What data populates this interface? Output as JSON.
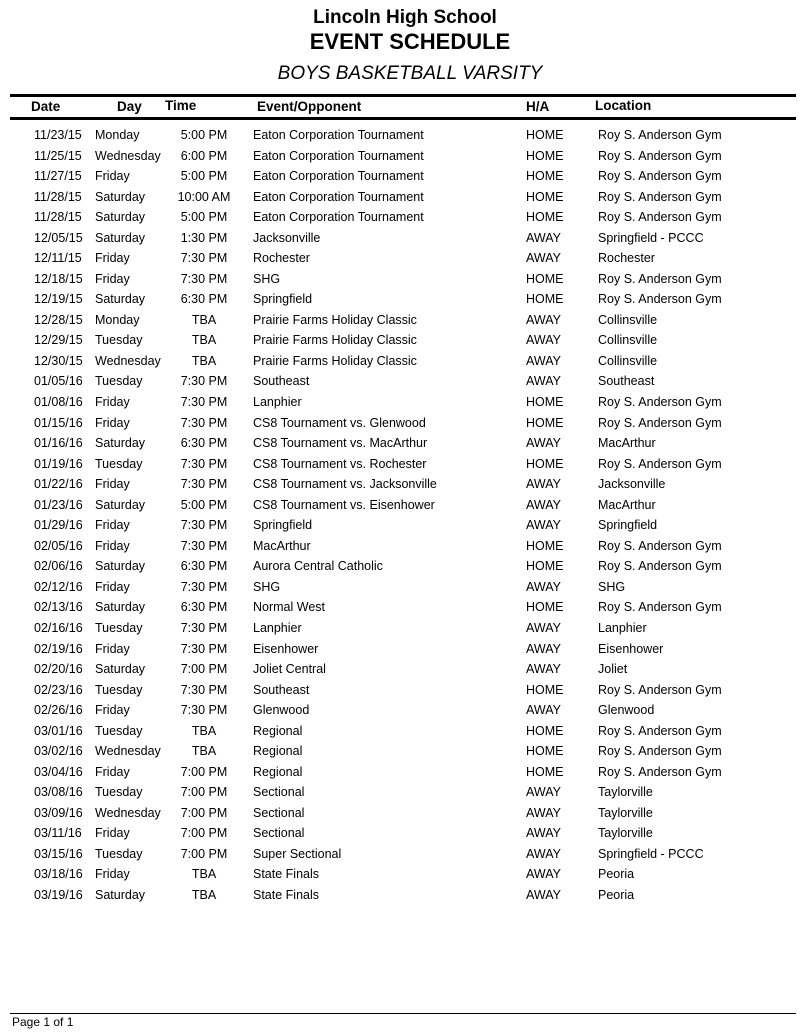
{
  "header": {
    "school": "Lincoln High School",
    "title": "EVENT SCHEDULE",
    "subtitle": "BOYS BASKETBALL VARSITY"
  },
  "columns": {
    "date": "Date",
    "day": "Day",
    "time": "Time",
    "event": "Event/Opponent",
    "ha": "H/A",
    "location": "Location"
  },
  "rows": [
    [
      "11/23/15",
      "Monday",
      "5:00 PM",
      "Eaton Corporation Tournament",
      "HOME",
      "Roy S. Anderson Gym"
    ],
    [
      "11/25/15",
      "Wednesday",
      "6:00 PM",
      "Eaton Corporation Tournament",
      "HOME",
      "Roy S. Anderson Gym"
    ],
    [
      "11/27/15",
      "Friday",
      "5:00 PM",
      "Eaton Corporation Tournament",
      "HOME",
      "Roy S. Anderson Gym"
    ],
    [
      "11/28/15",
      "Saturday",
      "10:00 AM",
      "Eaton Corporation Tournament",
      "HOME",
      "Roy S. Anderson Gym"
    ],
    [
      "11/28/15",
      "Saturday",
      "5:00 PM",
      "Eaton Corporation Tournament",
      "HOME",
      "Roy S. Anderson Gym"
    ],
    [
      "12/05/15",
      "Saturday",
      "1:30 PM",
      "Jacksonville",
      "AWAY",
      "Springfield - PCCC"
    ],
    [
      "12/11/15",
      "Friday",
      "7:30 PM",
      "Rochester",
      "AWAY",
      "Rochester"
    ],
    [
      "12/18/15",
      "Friday",
      "7:30 PM",
      "SHG",
      "HOME",
      "Roy S. Anderson Gym"
    ],
    [
      "12/19/15",
      "Saturday",
      "6:30 PM",
      "Springfield",
      "HOME",
      "Roy S. Anderson Gym"
    ],
    [
      "12/28/15",
      "Monday",
      "TBA",
      "Prairie Farms Holiday Classic",
      "AWAY",
      "Collinsville"
    ],
    [
      "12/29/15",
      "Tuesday",
      "TBA",
      "Prairie Farms Holiday Classic",
      "AWAY",
      "Collinsville"
    ],
    [
      "12/30/15",
      "Wednesday",
      "TBA",
      "Prairie Farms Holiday Classic",
      "AWAY",
      "Collinsville"
    ],
    [
      "01/05/16",
      "Tuesday",
      "7:30 PM",
      "Southeast",
      "AWAY",
      "Southeast"
    ],
    [
      "01/08/16",
      "Friday",
      "7:30 PM",
      "Lanphier",
      "HOME",
      "Roy S. Anderson Gym"
    ],
    [
      "01/15/16",
      "Friday",
      "7:30 PM",
      "CS8 Tournament vs. Glenwood",
      "HOME",
      "Roy S. Anderson Gym"
    ],
    [
      "01/16/16",
      "Saturday",
      "6:30 PM",
      "CS8 Tournament vs. MacArthur",
      "AWAY",
      "MacArthur"
    ],
    [
      "01/19/16",
      "Tuesday",
      "7:30 PM",
      "CS8 Tournament vs. Rochester",
      "HOME",
      "Roy S. Anderson Gym"
    ],
    [
      "01/22/16",
      "Friday",
      "7:30 PM",
      "CS8 Tournament vs. Jacksonville",
      "AWAY",
      "Jacksonville"
    ],
    [
      "01/23/16",
      "Saturday",
      "5:00 PM",
      "CS8 Tournament vs. Eisenhower",
      "AWAY",
      "MacArthur"
    ],
    [
      "01/29/16",
      "Friday",
      "7:30 PM",
      "Springfield",
      "AWAY",
      "Springfield"
    ],
    [
      "02/05/16",
      "Friday",
      "7:30 PM",
      "MacArthur",
      "HOME",
      "Roy S. Anderson Gym"
    ],
    [
      "02/06/16",
      "Saturday",
      "6:30 PM",
      "Aurora Central Catholic",
      "HOME",
      "Roy S. Anderson Gym"
    ],
    [
      "02/12/16",
      "Friday",
      "7:30 PM",
      "SHG",
      "AWAY",
      "SHG"
    ],
    [
      "02/13/16",
      "Saturday",
      "6:30 PM",
      "Normal West",
      "HOME",
      "Roy S. Anderson Gym"
    ],
    [
      "02/16/16",
      "Tuesday",
      "7:30 PM",
      "Lanphier",
      "AWAY",
      "Lanphier"
    ],
    [
      "02/19/16",
      "Friday",
      "7:30 PM",
      "Eisenhower",
      "AWAY",
      "Eisenhower"
    ],
    [
      "02/20/16",
      "Saturday",
      "7:00 PM",
      "Joliet Central",
      "AWAY",
      "Joliet"
    ],
    [
      "02/23/16",
      "Tuesday",
      "7:30 PM",
      "Southeast",
      "HOME",
      "Roy S. Anderson Gym"
    ],
    [
      "02/26/16",
      "Friday",
      "7:30 PM",
      "Glenwood",
      "AWAY",
      "Glenwood"
    ],
    [
      "03/01/16",
      "Tuesday",
      "TBA",
      "Regional",
      "HOME",
      "Roy S. Anderson Gym"
    ],
    [
      "03/02/16",
      "Wednesday",
      "TBA",
      "Regional",
      "HOME",
      "Roy S. Anderson Gym"
    ],
    [
      "03/04/16",
      "Friday",
      "7:00 PM",
      "Regional",
      "HOME",
      "Roy S. Anderson Gym"
    ],
    [
      "03/08/16",
      "Tuesday",
      "7:00 PM",
      "Sectional",
      "AWAY",
      "Taylorville"
    ],
    [
      "03/09/16",
      "Wednesday",
      "7:00 PM",
      "Sectional",
      "AWAY",
      "Taylorville"
    ],
    [
      "03/11/16",
      "Friday",
      "7:00 PM",
      "Sectional",
      "AWAY",
      "Taylorville"
    ],
    [
      "03/15/16",
      "Tuesday",
      "7:00 PM",
      "Super Sectional",
      "AWAY",
      "Springfield - PCCC"
    ],
    [
      "03/18/16",
      "Friday",
      "TBA",
      "State Finals",
      "AWAY",
      "Peoria"
    ],
    [
      "03/19/16",
      "Saturday",
      "TBA",
      "State Finals",
      "AWAY",
      "Peoria"
    ]
  ],
  "footer": {
    "page": "Page 1 of 1"
  }
}
